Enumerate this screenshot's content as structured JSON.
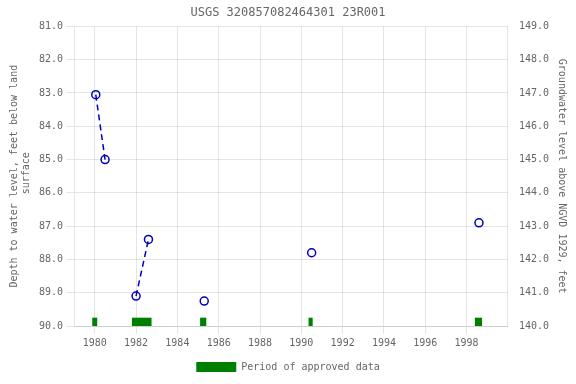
{
  "chart_data": {
    "type": "scatter",
    "title": "USGS 320857082464301 23R001",
    "ylabel": "Depth to water level, feet below land\n surface",
    "y2label": "Groundwater level above NGVD 1929, feet",
    "xlim": [
      1979,
      2000
    ],
    "xticks": [
      1980,
      1982,
      1984,
      1986,
      1988,
      1990,
      1992,
      1994,
      1996,
      1998
    ],
    "ylim": [
      90.0,
      81.0
    ],
    "yticks": [
      {
        "value": 81.0,
        "label": "81.0"
      },
      {
        "value": 82.0,
        "label": "82.0"
      },
      {
        "value": 83.0,
        "label": "83.0"
      },
      {
        "value": 84.0,
        "label": "84.0"
      },
      {
        "value": 85.0,
        "label": "85.0"
      },
      {
        "value": 86.0,
        "label": "86.0"
      },
      {
        "value": 87.0,
        "label": "87.0"
      },
      {
        "value": 88.0,
        "label": "88.0"
      },
      {
        "value": 89.0,
        "label": "89.0"
      },
      {
        "value": 90.0,
        "label": "90.0"
      }
    ],
    "y2lim": [
      140.0,
      149.0
    ],
    "y2ticks": [
      {
        "value": 140.0,
        "label": "140.0"
      },
      {
        "value": 141.0,
        "label": "141.0"
      },
      {
        "value": 142.0,
        "label": "142.0"
      },
      {
        "value": 143.0,
        "label": "143.0"
      },
      {
        "value": 144.0,
        "label": "144.0"
      },
      {
        "value": 145.0,
        "label": "145.0"
      },
      {
        "value": 146.0,
        "label": "146.0"
      },
      {
        "value": 147.0,
        "label": "147.0"
      },
      {
        "value": 148.0,
        "label": "148.0"
      },
      {
        "value": 149.0,
        "label": "149.0"
      }
    ],
    "grid": true,
    "legend": "bottom",
    "series": [
      {
        "color": "#0000bb",
        "line_style": "dashed",
        "marker": "none",
        "x": [
          1980.05,
          1980.5
        ],
        "values": [
          83.05,
          85.0
        ]
      },
      {
        "color": "#0000bb",
        "line_style": "dashed",
        "marker": "none",
        "x": [
          1982.0,
          1982.6
        ],
        "values": [
          89.1,
          87.4
        ]
      },
      {
        "color": "#0000bb",
        "line_style": "none",
        "marker": "circle",
        "x": [
          1980.05,
          1980.5,
          1982.0,
          1982.6,
          1985.3,
          1990.5,
          1998.6
        ],
        "values": [
          83.05,
          85.0,
          89.1,
          87.4,
          89.25,
          87.8,
          86.9
        ]
      },
      {
        "name": "Period of approved data",
        "type": "bar",
        "orientation": "horizontal",
        "color": "#008000",
        "periods": [
          [
            1979.88,
            1980.12
          ],
          [
            1981.8,
            1982.75
          ],
          [
            1985.1,
            1985.4
          ],
          [
            1990.35,
            1990.55
          ],
          [
            1998.4,
            1998.75
          ]
        ],
        "y_range": [
          89.75,
          90.0
        ]
      }
    ]
  }
}
